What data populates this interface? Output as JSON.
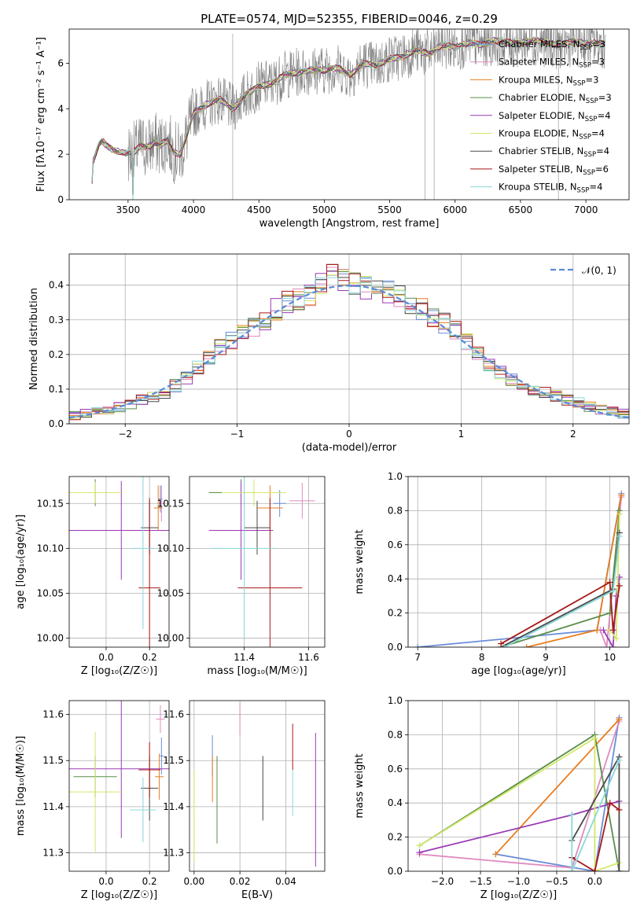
{
  "figure_title": "PLATE=0574, MJD=52355, FIBERID=0046, z=0.29",
  "colors": {
    "Chabrier MILES": "#6a8ed8",
    "Salpeter MILES": "#e08ac0",
    "Kroupa MILES": "#e87d1e",
    "Chabrier ELODIE": "#5a8e4a",
    "Salpeter ELODIE": "#9a3ab5",
    "Kroupa ELODIE": "#d2e86a",
    "Chabrier STELIB": "#4a4a4a",
    "Salpeter STELIB": "#a81818",
    "Kroupa STELIB": "#8ad8d8",
    "data": "#808080",
    "normal": "#5a8ad8"
  },
  "chart_data": [
    {
      "id": "spectrum",
      "type": "line",
      "title": "PLATE=0574, MJD=52355, FIBERID=0046, z=0.29",
      "xlabel": "wavelength [Angstrom, rest frame]",
      "ylabel": "Flux [fλ10⁻¹⁷ erg cm⁻² s⁻¹ A⁻¹]",
      "xlim": [
        3050,
        7330
      ],
      "ylim": [
        0,
        7.5
      ],
      "xticks": [
        3500,
        4000,
        4500,
        5000,
        5500,
        6000,
        6500,
        7000
      ],
      "yticks": [
        0,
        2,
        4,
        6
      ],
      "grid": false,
      "legend_position": "top-right",
      "legend": [
        {
          "name": "Chabrier MILES, N",
          "sub": "SSP",
          "suffix": "=3"
        },
        {
          "name": "Salpeter MILES, N",
          "sub": "SSP",
          "suffix": "=3"
        },
        {
          "name": "Kroupa MILES, N",
          "sub": "SSP",
          "suffix": "=3"
        },
        {
          "name": "Chabrier ELODIE, N",
          "sub": "SSP",
          "suffix": "=3"
        },
        {
          "name": "Salpeter ELODIE, N",
          "sub": "SSP",
          "suffix": "=4"
        },
        {
          "name": "Kroupa ELODIE, N",
          "sub": "SSP",
          "suffix": "=4"
        },
        {
          "name": "Chabrier STELIB, N",
          "sub": "SSP",
          "suffix": "=4"
        },
        {
          "name": "Salpeter STELIB, N",
          "sub": "SSP",
          "suffix": "=6"
        },
        {
          "name": "Kroupa STELIB, N",
          "sub": "SSP",
          "suffix": "=4"
        }
      ],
      "continuum": [
        [
          3220,
          0
        ],
        [
          3230,
          1.65
        ],
        [
          3280,
          2.45
        ],
        [
          3300,
          2.6
        ],
        [
          3350,
          2.3
        ],
        [
          3400,
          2.15
        ],
        [
          3450,
          2.1
        ],
        [
          3500,
          2.05
        ],
        [
          3550,
          2.1
        ],
        [
          3600,
          2.4
        ],
        [
          3650,
          2.3
        ],
        [
          3700,
          2.5
        ],
        [
          3750,
          2.4
        ],
        [
          3800,
          2.6
        ],
        [
          3850,
          2.1
        ],
        [
          3900,
          2.0
        ],
        [
          3950,
          2.8
        ],
        [
          4000,
          3.8
        ],
        [
          4100,
          4.2
        ],
        [
          4200,
          4.4
        ],
        [
          4300,
          4.0
        ],
        [
          4400,
          4.6
        ],
        [
          4500,
          5.0
        ],
        [
          4600,
          5.1
        ],
        [
          4700,
          5.5
        ],
        [
          4800,
          5.6
        ],
        [
          4900,
          5.7
        ],
        [
          5000,
          5.7
        ],
        [
          5100,
          5.8
        ],
        [
          5200,
          5.5
        ],
        [
          5300,
          6.0
        ],
        [
          5400,
          5.9
        ],
        [
          5500,
          6.2
        ],
        [
          5600,
          6.3
        ],
        [
          5700,
          6.6
        ],
        [
          5800,
          6.4
        ],
        [
          5900,
          6.8
        ],
        [
          6000,
          6.7
        ],
        [
          6100,
          6.9
        ],
        [
          6200,
          6.8
        ],
        [
          6300,
          7.0
        ],
        [
          6400,
          6.9
        ],
        [
          6500,
          6.9
        ],
        [
          6600,
          7.0
        ],
        [
          6700,
          6.9
        ],
        [
          6800,
          6.8
        ],
        [
          6900,
          6.95
        ],
        [
          7000,
          6.9
        ],
        [
          7100,
          6.85
        ]
      ]
    },
    {
      "id": "residuals",
      "type": "histogram",
      "xlabel": "(data-model)/error",
      "ylabel": "Normed distribution",
      "xlim": [
        -2.5,
        2.5
      ],
      "ylim": [
        0,
        0.49
      ],
      "xticks": [
        -2,
        -1,
        0,
        1,
        2
      ],
      "yticks": [
        0.0,
        0.1,
        0.2,
        0.3,
        0.4
      ],
      "grid": true,
      "legend_position": "top-right",
      "legend": "𝒩(0, 1)",
      "bins": [
        -2.5,
        -2.4,
        -2.3,
        -2.2,
        -2.1,
        -2.0,
        -1.9,
        -1.8,
        -1.7,
        -1.6,
        -1.5,
        -1.4,
        -1.3,
        -1.2,
        -1.1,
        -1.0,
        -0.9,
        -0.8,
        -0.7,
        -0.6,
        -0.5,
        -0.4,
        -0.3,
        -0.2,
        -0.1,
        0.0,
        0.1,
        0.2,
        0.3,
        0.4,
        0.5,
        0.6,
        0.7,
        0.8,
        0.9,
        1.0,
        1.1,
        1.2,
        1.3,
        1.4,
        1.5,
        1.6,
        1.7,
        1.8,
        1.9,
        2.0,
        2.1,
        2.2,
        2.3,
        2.4,
        2.5
      ],
      "base_values": [
        0.025,
        0.03,
        0.035,
        0.04,
        0.048,
        0.058,
        0.07,
        0.08,
        0.09,
        0.11,
        0.13,
        0.16,
        0.19,
        0.22,
        0.24,
        0.26,
        0.28,
        0.3,
        0.33,
        0.35,
        0.36,
        0.37,
        0.4,
        0.43,
        0.42,
        0.4,
        0.39,
        0.39,
        0.38,
        0.37,
        0.35,
        0.33,
        0.31,
        0.29,
        0.27,
        0.24,
        0.2,
        0.17,
        0.15,
        0.13,
        0.11,
        0.1,
        0.09,
        0.08,
        0.07,
        0.06,
        0.05,
        0.04,
        0.035,
        0.03
      ],
      "normal_curve": true
    },
    {
      "id": "age-vs-Z",
      "type": "errorbar",
      "xlabel": "Z [log₁₀(Z/Z☉)]",
      "ylabel": "age  [log₁₀(age/yr)]",
      "xlim": [
        -0.17,
        0.29
      ],
      "ylim": [
        9.99,
        10.18
      ],
      "xticks": [
        0.0,
        0.2
      ],
      "yticks": [
        10.0,
        10.05,
        10.1,
        10.15
      ],
      "grid": true,
      "points": [
        {
          "x": 0.25,
          "y": 10.155,
          "xerr": 0.01,
          "yerr": 0.015,
          "c": "Chabrier MILES"
        },
        {
          "x": 0.255,
          "y": 10.15,
          "xerr": 0.015,
          "yerr": 0.02,
          "c": "Salpeter MILES"
        },
        {
          "x": 0.24,
          "y": 10.145,
          "xerr": 0.02,
          "yerr": 0.025,
          "c": "Kroupa MILES"
        },
        {
          "x": -0.05,
          "y": 10.162,
          "xerr": 0.12,
          "yerr": 0.015,
          "c": "Chabrier ELODIE"
        },
        {
          "x": 0.07,
          "y": 10.12,
          "xerr": 0.24,
          "yerr": 0.055,
          "c": "Salpeter ELODIE"
        },
        {
          "x": -0.05,
          "y": 10.162,
          "xerr": 0.12,
          "yerr": 0.012,
          "c": "Kroupa ELODIE"
        },
        {
          "x": 0.2,
          "y": 10.123,
          "xerr": 0.04,
          "yerr": 0.03,
          "c": "Chabrier STELIB"
        },
        {
          "x": 0.2,
          "y": 10.056,
          "xerr": 0.05,
          "yerr": 0.1,
          "c": "Salpeter STELIB"
        },
        {
          "x": 0.17,
          "y": 10.1,
          "xerr": 0.05,
          "yerr": 0.09,
          "c": "Kroupa STELIB"
        }
      ]
    },
    {
      "id": "age-vs-mass",
      "type": "errorbar",
      "xlabel": "mass [log₁₀(M/M☉)]",
      "ylabel": "",
      "xlim": [
        11.23,
        11.65
      ],
      "ylim": [
        9.99,
        10.18
      ],
      "xticks": [
        11.4,
        11.6
      ],
      "yticks": [
        10.0,
        10.05,
        10.1,
        10.15
      ],
      "grid": true,
      "points": [
        {
          "x": 11.51,
          "y": 10.15,
          "xerr": 0.02,
          "yerr": 0.015,
          "c": "Chabrier MILES"
        },
        {
          "x": 11.58,
          "y": 10.153,
          "xerr": 0.04,
          "yerr": 0.02,
          "c": "Salpeter MILES"
        },
        {
          "x": 11.48,
          "y": 10.145,
          "xerr": 0.04,
          "yerr": 0.025,
          "c": "Kroupa MILES"
        },
        {
          "x": 11.39,
          "y": 10.162,
          "xerr": 0.1,
          "yerr": 0.015,
          "c": "Chabrier ELODIE"
        },
        {
          "x": 11.39,
          "y": 10.12,
          "xerr": 0.1,
          "yerr": 0.055,
          "c": "Salpeter ELODIE"
        },
        {
          "x": 11.43,
          "y": 10.162,
          "xerr": 0.1,
          "yerr": 0.015,
          "c": "Kroupa ELODIE"
        },
        {
          "x": 11.44,
          "y": 10.123,
          "xerr": 0.04,
          "yerr": 0.03,
          "c": "Chabrier STELIB"
        },
        {
          "x": 11.48,
          "y": 10.056,
          "xerr": 0.1,
          "yerr": 0.1,
          "c": "Salpeter STELIB"
        },
        {
          "x": 11.4,
          "y": 10.1,
          "xerr": 0.1,
          "yerr": 0.1,
          "c": "Kroupa STELIB"
        }
      ]
    },
    {
      "id": "massweight-vs-age",
      "type": "line",
      "xlabel": "age  [log₁₀(age/yr)]",
      "ylabel": "mass weight",
      "xlim": [
        6.85,
        10.3
      ],
      "ylim": [
        0,
        1.0
      ],
      "xticks": [
        7,
        8,
        9,
        10
      ],
      "yticks": [
        0.0,
        0.2,
        0.4,
        0.6,
        0.8,
        1.0
      ],
      "grid": true,
      "series": [
        {
          "c": "Chabrier MILES",
          "x": [
            7.0,
            9.8,
            10.18
          ],
          "y": [
            0.0,
            0.1,
            0.9
          ]
        },
        {
          "c": "Salpeter MILES",
          "x": [
            9.85,
            9.95,
            10.18
          ],
          "y": [
            0.1,
            0.0,
            0.88
          ]
        },
        {
          "c": "Kroupa MILES",
          "x": [
            8.7,
            9.8,
            10.18
          ],
          "y": [
            0.0,
            0.1,
            0.89
          ]
        },
        {
          "c": "Chabrier ELODIE",
          "x": [
            8.3,
            10.0,
            10.15
          ],
          "y": [
            0.0,
            0.2,
            0.8
          ]
        },
        {
          "c": "Salpeter ELODIE",
          "x": [
            9.9,
            10.05,
            10.1,
            10.15
          ],
          "y": [
            0.1,
            0.0,
            0.3,
            0.41
          ]
        },
        {
          "c": "Kroupa ELODIE",
          "x": [
            10.0,
            10.1,
            10.15
          ],
          "y": [
            0.1,
            0.05,
            0.78
          ]
        },
        {
          "c": "Chabrier STELIB",
          "x": [
            8.3,
            10.05,
            10.15
          ],
          "y": [
            0.0,
            0.34,
            0.67
          ]
        },
        {
          "c": "Salpeter STELIB",
          "x": [
            8.3,
            10.0,
            10.05,
            10.15
          ],
          "y": [
            0.02,
            0.38,
            0.1,
            0.36
          ]
        },
        {
          "c": "Kroupa STELIB",
          "x": [
            8.35,
            10.05,
            10.15
          ],
          "y": [
            0.0,
            0.33,
            0.65
          ]
        }
      ]
    },
    {
      "id": "mass-vs-Z",
      "type": "errorbar",
      "xlabel": "Z [log₁₀(Z/Z☉)]",
      "ylabel": "mass [log₁₀(M/M☉)]",
      "xlim": [
        -0.17,
        0.29
      ],
      "ylim": [
        11.26,
        11.63
      ],
      "xticks": [
        0.0,
        0.2
      ],
      "yticks": [
        11.3,
        11.4,
        11.5,
        11.6
      ],
      "grid": true,
      "points": [
        {
          "x": 0.255,
          "y": 11.51,
          "xerr": 0.01,
          "yerr": 0.04,
          "c": "Chabrier MILES"
        },
        {
          "x": 0.25,
          "y": 11.59,
          "xerr": 0.02,
          "yerr": 0.03,
          "c": "Salpeter MILES"
        },
        {
          "x": 0.245,
          "y": 11.465,
          "xerr": 0.02,
          "yerr": 0.05,
          "c": "Kroupa MILES"
        },
        {
          "x": -0.05,
          "y": 11.465,
          "xerr": 0.1,
          "yerr": 0.045,
          "c": "Chabrier ELODIE"
        },
        {
          "x": 0.07,
          "y": 11.482,
          "xerr": 0.24,
          "yerr": 0.15,
          "c": "Salpeter ELODIE"
        },
        {
          "x": -0.05,
          "y": 11.432,
          "xerr": 0.12,
          "yerr": 0.13,
          "c": "Kroupa ELODIE"
        },
        {
          "x": 0.2,
          "y": 11.44,
          "xerr": 0.04,
          "yerr": 0.07,
          "c": "Chabrier STELIB"
        },
        {
          "x": 0.2,
          "y": 11.48,
          "xerr": 0.05,
          "yerr": 0.06,
          "c": "Salpeter STELIB"
        },
        {
          "x": 0.17,
          "y": 11.393,
          "xerr": 0.06,
          "yerr": 0.07,
          "c": "Kroupa STELIB"
        }
      ]
    },
    {
      "id": "mass-vs-ebv",
      "type": "errorbar",
      "xlabel": "E(B-V)",
      "ylabel": "",
      "xlim": [
        -0.002,
        0.057
      ],
      "ylim": [
        11.26,
        11.63
      ],
      "xticks": [
        0.0,
        0.02,
        0.04
      ],
      "yticks": [
        11.3,
        11.4,
        11.5,
        11.6
      ],
      "grid": true,
      "points": [
        {
          "x": 0.008,
          "y": 11.51,
          "xerr": 0,
          "yerr": 0.045,
          "c": "Chabrier MILES"
        },
        {
          "x": 0.02,
          "y": 11.59,
          "xerr": 0,
          "yerr": 0.035,
          "c": "Salpeter MILES"
        },
        {
          "x": 0.008,
          "y": 11.46,
          "xerr": 0,
          "yerr": 0.05,
          "c": "Kroupa MILES"
        },
        {
          "x": 0.01,
          "y": 11.415,
          "xerr": 0,
          "yerr": 0.095,
          "c": "Chabrier ELODIE"
        },
        {
          "x": 0.053,
          "y": 11.415,
          "xerr": 0,
          "yerr": 0.145,
          "c": "Salpeter ELODIE"
        },
        {
          "x": 0.0,
          "y": 11.38,
          "xerr": 0,
          "yerr": 0.1,
          "c": "Kroupa ELODIE"
        },
        {
          "x": 0.03,
          "y": 11.44,
          "xerr": 0,
          "yerr": 0.07,
          "c": "Chabrier STELIB"
        },
        {
          "x": 0.043,
          "y": 11.53,
          "xerr": 0,
          "yerr": 0.05,
          "c": "Salpeter STELIB"
        },
        {
          "x": 0.043,
          "y": 11.43,
          "xerr": 0,
          "yerr": 0.05,
          "c": "Kroupa STELIB"
        }
      ]
    },
    {
      "id": "massweight-vs-Z",
      "type": "line",
      "xlabel": "Z [log₁₀(Z/Z☉)]",
      "ylabel": "mass weight",
      "xlim": [
        -2.45,
        0.45
      ],
      "ylim": [
        0,
        1.0
      ],
      "xticks": [
        -2.0,
        -1.5,
        -1.0,
        -0.5,
        0.0
      ],
      "yticks": [
        0.0,
        0.2,
        0.4,
        0.6,
        0.8,
        1.0
      ],
      "grid": true,
      "series": [
        {
          "c": "Chabrier MILES",
          "x": [
            -1.3,
            0.0,
            0.32
          ],
          "y": [
            0.1,
            0.0,
            0.9
          ]
        },
        {
          "c": "Salpeter MILES",
          "x": [
            -2.3,
            -0.3,
            0.32
          ],
          "y": [
            0.1,
            0.02,
            0.88
          ]
        },
        {
          "c": "Kroupa MILES",
          "x": [
            -1.3,
            0.32
          ],
          "y": [
            0.1,
            0.89
          ]
        },
        {
          "c": "Chabrier ELODIE",
          "x": [
            -2.3,
            0.0,
            0.32
          ],
          "y": [
            0.15,
            0.8,
            0.0
          ]
        },
        {
          "c": "Salpeter ELODIE",
          "x": [
            -2.3,
            -0.3,
            0.32
          ],
          "y": [
            0.11,
            0.33,
            0.41
          ]
        },
        {
          "c": "Kroupa ELODIE",
          "x": [
            -2.3,
            0.0,
            0.0,
            0.32
          ],
          "y": [
            0.15,
            0.78,
            0.0,
            0.05
          ]
        },
        {
          "c": "Chabrier STELIB",
          "x": [
            -0.3,
            0.32,
            0.32
          ],
          "y": [
            0.18,
            0.67,
            0.0
          ]
        },
        {
          "c": "Salpeter STELIB",
          "x": [
            -0.3,
            0.0,
            0.2,
            0.32
          ],
          "y": [
            0.08,
            0.0,
            0.4,
            0.36
          ]
        },
        {
          "c": "Kroupa STELIB",
          "x": [
            -0.3,
            -0.3,
            0.32
          ],
          "y": [
            0.33,
            0.0,
            0.65
          ]
        }
      ]
    }
  ]
}
